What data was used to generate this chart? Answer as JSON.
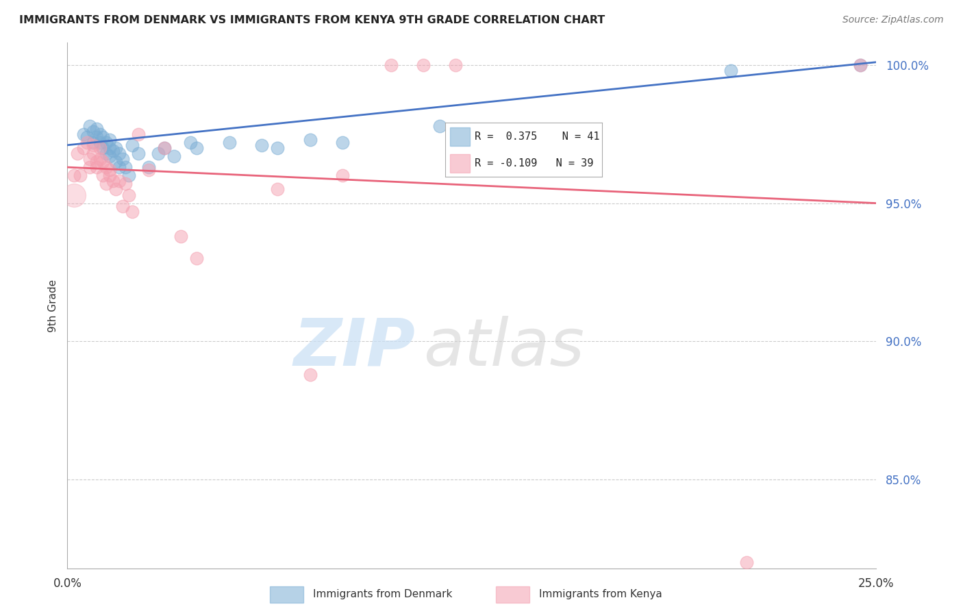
{
  "title": "IMMIGRANTS FROM DENMARK VS IMMIGRANTS FROM KENYA 9TH GRADE CORRELATION CHART",
  "source": "Source: ZipAtlas.com",
  "ylabel": "9th Grade",
  "xlim": [
    0.0,
    0.25
  ],
  "ylim": [
    0.818,
    1.008
  ],
  "yticks": [
    0.85,
    0.9,
    0.95,
    1.0
  ],
  "ytick_labels": [
    "85.0%",
    "90.0%",
    "95.0%",
    "100.0%"
  ],
  "xticks": [
    0.0,
    0.05,
    0.1,
    0.15,
    0.2,
    0.25
  ],
  "xtick_labels": [
    "0.0%",
    "",
    "",
    "",
    "",
    "25.0%"
  ],
  "grid_color": "#cccccc",
  "background_color": "#ffffff",
  "denmark_color": "#7aadd4",
  "kenya_color": "#f4a0b0",
  "denmark_R": 0.375,
  "denmark_N": 41,
  "kenya_R": -0.109,
  "kenya_N": 39,
  "denmark_line_color": "#4472c4",
  "kenya_line_color": "#e8637a",
  "denmark_line_x": [
    0.0,
    0.25
  ],
  "denmark_line_y": [
    0.971,
    1.001
  ],
  "kenya_line_x": [
    0.0,
    0.25
  ],
  "kenya_line_y": [
    0.963,
    0.95
  ],
  "denmark_x": [
    0.005,
    0.006,
    0.007,
    0.008,
    0.008,
    0.009,
    0.009,
    0.01,
    0.01,
    0.011,
    0.011,
    0.012,
    0.012,
    0.013,
    0.013,
    0.013,
    0.014,
    0.015,
    0.015,
    0.016,
    0.016,
    0.017,
    0.018,
    0.019,
    0.02,
    0.022,
    0.025,
    0.028,
    0.03,
    0.033,
    0.038,
    0.04,
    0.05,
    0.06,
    0.065,
    0.075,
    0.085,
    0.115,
    0.145,
    0.205,
    0.245
  ],
  "denmark_y": [
    0.975,
    0.974,
    0.978,
    0.972,
    0.976,
    0.974,
    0.977,
    0.972,
    0.975,
    0.97,
    0.974,
    0.968,
    0.972,
    0.97,
    0.967,
    0.973,
    0.969,
    0.965,
    0.97,
    0.968,
    0.963,
    0.966,
    0.963,
    0.96,
    0.971,
    0.968,
    0.963,
    0.968,
    0.97,
    0.967,
    0.972,
    0.97,
    0.972,
    0.971,
    0.97,
    0.973,
    0.972,
    0.978,
    0.972,
    0.998,
    1.0
  ],
  "kenya_x": [
    0.002,
    0.003,
    0.004,
    0.005,
    0.006,
    0.007,
    0.007,
    0.008,
    0.008,
    0.009,
    0.009,
    0.01,
    0.01,
    0.011,
    0.011,
    0.012,
    0.012,
    0.013,
    0.013,
    0.014,
    0.015,
    0.016,
    0.017,
    0.018,
    0.019,
    0.02,
    0.022,
    0.025,
    0.03,
    0.035,
    0.04,
    0.065,
    0.075,
    0.085,
    0.1,
    0.11,
    0.12,
    0.21,
    0.245
  ],
  "kenya_y": [
    0.96,
    0.968,
    0.96,
    0.97,
    0.972,
    0.966,
    0.963,
    0.968,
    0.971,
    0.965,
    0.963,
    0.97,
    0.966,
    0.96,
    0.965,
    0.963,
    0.957,
    0.96,
    0.962,
    0.958,
    0.955,
    0.958,
    0.949,
    0.957,
    0.953,
    0.947,
    0.975,
    0.962,
    0.97,
    0.938,
    0.93,
    0.955,
    0.888,
    0.96,
    1.0,
    1.0,
    1.0,
    0.82,
    1.0
  ],
  "large_kenya_x": [
    0.002
  ],
  "large_kenya_y": [
    0.953
  ],
  "legend_denmark_label": "R =  0.375    N = 41",
  "legend_kenya_label": "R = -0.109   N = 39",
  "watermark_zip": "ZIP",
  "watermark_atlas": "atlas"
}
